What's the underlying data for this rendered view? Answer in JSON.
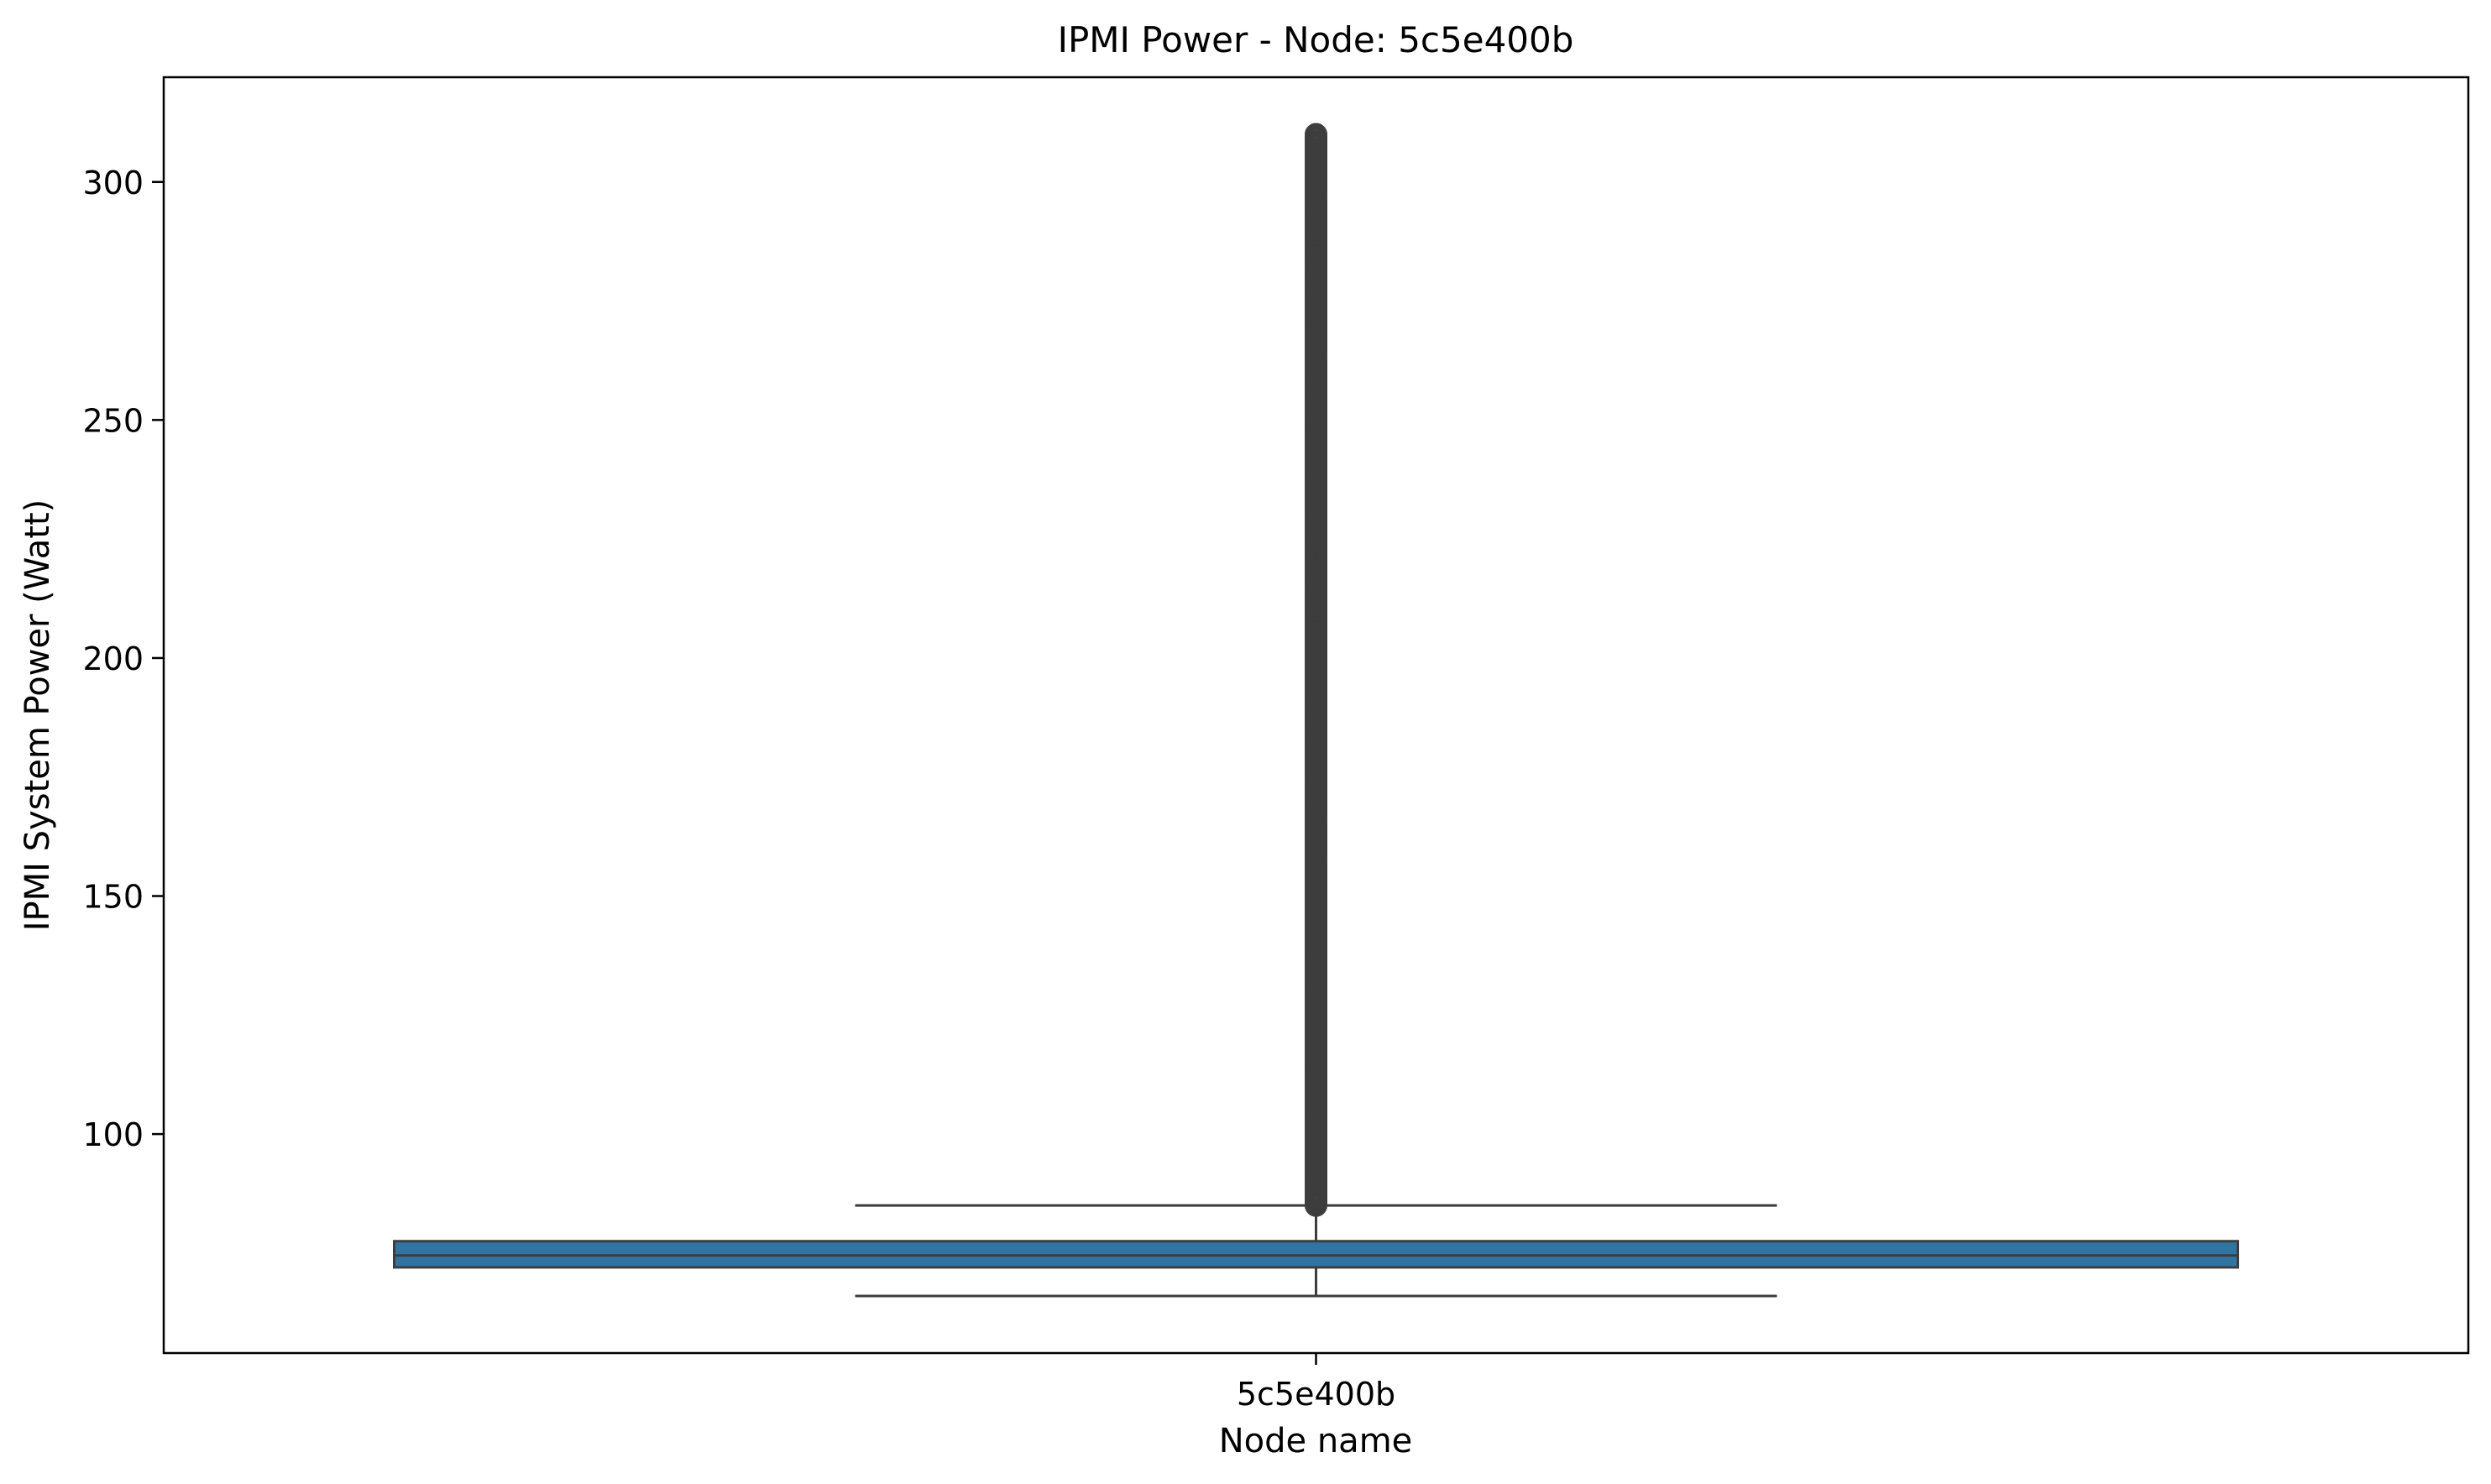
{
  "chart_data": {
    "type": "box",
    "title": "IPMI Power - Node: 5c5e400b",
    "xlabel": "Node name",
    "ylabel": "IPMI System Power (Watt)",
    "categories": [
      "5c5e400b"
    ],
    "boxes": [
      {
        "category": "5c5e400b",
        "whisker_low": 66,
        "q1": 72,
        "median": 74.5,
        "q3": 77.5,
        "whisker_high": 85,
        "outlier_range": [
          85,
          310
        ]
      }
    ],
    "ylim": [
      54,
      322
    ],
    "yticks": [
      100,
      150,
      200,
      250,
      300
    ],
    "grid": false,
    "colors": {
      "box": "#3274a1",
      "line": "#3d3d3d"
    }
  }
}
